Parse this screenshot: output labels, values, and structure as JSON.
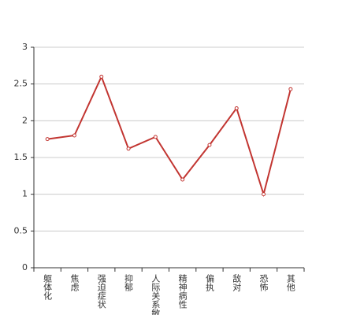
{
  "chart_data": {
    "type": "line",
    "categories": [
      "躯体化",
      "焦虑",
      "强迫症状",
      "抑郁",
      "人际关系敏感",
      "精神病性",
      "偏执",
      "敌对",
      "恐怖",
      "其他"
    ],
    "series": [
      {
        "name": null,
        "color": "#c23531",
        "values": [
          1.75,
          1.8,
          2.6,
          1.62,
          1.78,
          1.2,
          1.67,
          2.17,
          1.0,
          2.43
        ]
      }
    ],
    "ylim": [
      0,
      3
    ],
    "yticks": [
      0,
      0.5,
      1,
      1.5,
      2,
      2.5,
      3
    ],
    "grid": true
  }
}
